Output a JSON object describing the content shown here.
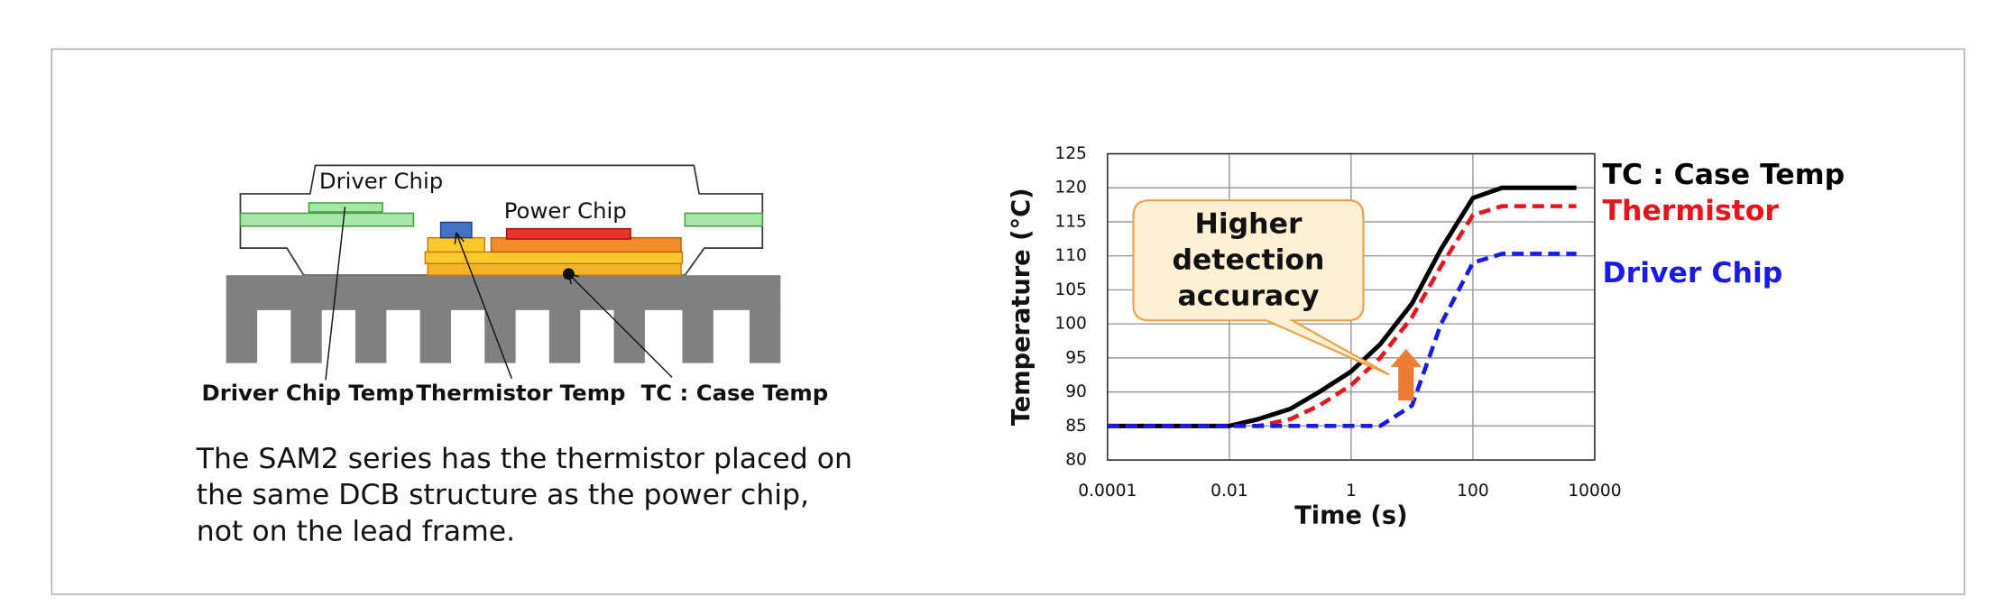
{
  "diagram": {
    "driver_chip": "Driver Chip",
    "power_chip": "Power Chip",
    "labels": [
      "Driver Chip Temp",
      "Thermistor Temp",
      "TC : Case Temp"
    ],
    "description": [
      "The SAM2 series has the thermistor placed on",
      "the same DCB structure as the power chip,",
      "not on the lead frame."
    ]
  },
  "chart_data": {
    "type": "line",
    "x_label": "Time (s)",
    "y_label": "Temperature (°C)",
    "xscale": "log",
    "xlim": [
      0.0001,
      10000
    ],
    "xticks": [
      0.0001,
      0.01,
      1,
      100,
      10000
    ],
    "ylim": [
      80,
      125
    ],
    "yticks": [
      80,
      85,
      90,
      95,
      100,
      105,
      110,
      115,
      120,
      125
    ],
    "grid": true,
    "legend": "right",
    "annotation": [
      "Higher",
      "detection",
      "accuracy"
    ],
    "x": [
      0.0001,
      0.001,
      0.01,
      0.03,
      0.1,
      0.3,
      1,
      3,
      10,
      30,
      100,
      300,
      1000,
      5000
    ],
    "series": [
      {
        "name": "TC : Case Temp",
        "color": "#000000",
        "style": "solid",
        "values": [
          85,
          85,
          85,
          86,
          87.5,
          90,
          93,
          97,
          103,
          111,
          118.5,
          120,
          120,
          120
        ]
      },
      {
        "name": "Thermistor",
        "color": "#e8141b",
        "style": "dashed",
        "values": [
          85,
          85,
          85,
          85,
          86,
          88,
          91,
          95,
          101,
          108.5,
          116,
          117.3,
          117.3,
          117.3
        ]
      },
      {
        "name": "Driver Chip",
        "color": "#1a1ae6",
        "style": "dashed",
        "values": [
          85,
          85,
          85,
          85,
          85,
          85,
          85,
          85,
          88,
          100,
          109,
          110.3,
          110.3,
          110.3
        ]
      }
    ]
  }
}
